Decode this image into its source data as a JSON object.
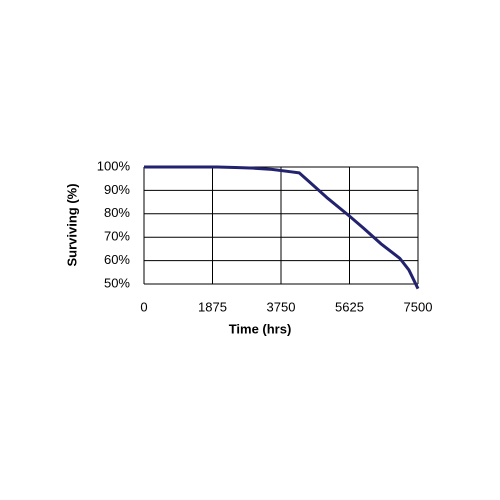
{
  "chart_data": {
    "type": "line",
    "x_label": "Time (hrs)",
    "y_label": "Surviving (%)",
    "x": [
      0,
      1000,
      2000,
      2500,
      3000,
      3500,
      4000,
      4250,
      4500,
      5000,
      5625,
      6000,
      6500,
      7000,
      7250,
      7500
    ],
    "series": [
      {
        "name": "Surviving",
        "color": "#22226e",
        "values": [
          100,
          100,
          100,
          99.8,
          99.5,
          99,
          98,
          97.5,
          94,
          87,
          79,
          74,
          67,
          61,
          56,
          48
        ]
      }
    ],
    "xlim": [
      0,
      7500
    ],
    "xticks": [
      0,
      1875,
      3750,
      5625,
      7500
    ],
    "ylim": [
      50,
      100
    ],
    "yticks": [
      {
        "value": 50,
        "label": "50%"
      },
      {
        "value": 60,
        "label": "60%"
      },
      {
        "value": 70,
        "label": "70%"
      },
      {
        "value": 80,
        "label": "80%"
      },
      {
        "value": 90,
        "label": "90%"
      },
      {
        "value": 100,
        "label": "100%"
      }
    ],
    "grid": true
  }
}
